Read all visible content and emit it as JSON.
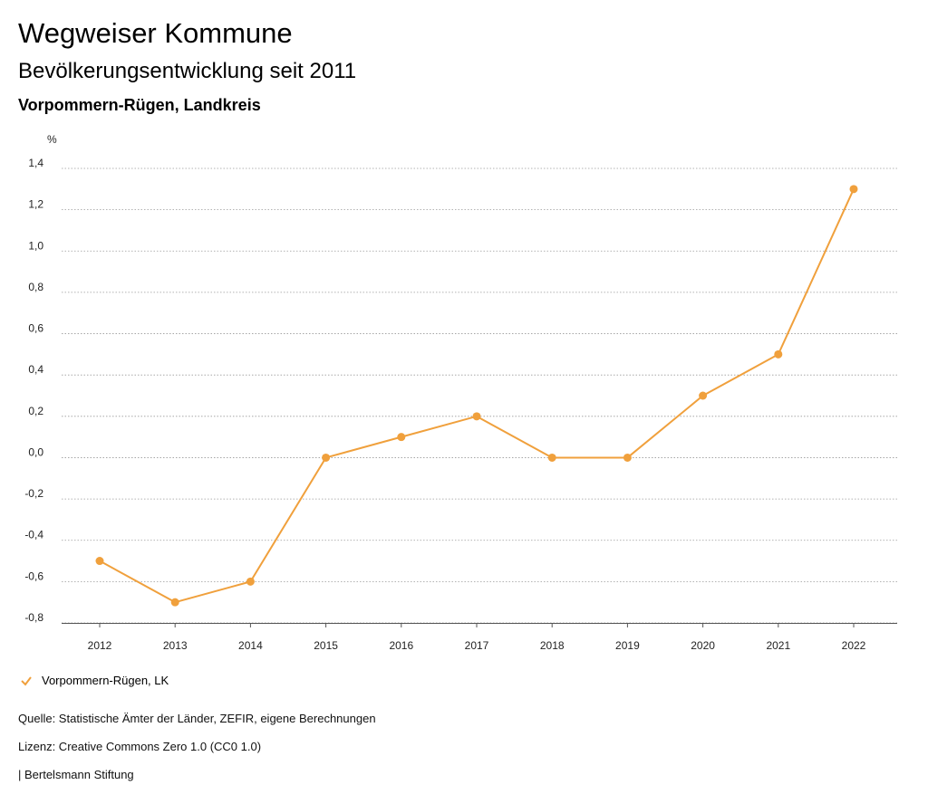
{
  "header": {
    "title": "Wegweiser Kommune",
    "subtitle": "Bevölkerungsentwicklung seit 2011",
    "region": "Vorpommern-Rügen, Landkreis"
  },
  "chart_data": {
    "type": "line",
    "title": "Bevölkerungsentwicklung seit 2011",
    "ylabel": "%",
    "xlabel": "",
    "ylim": [
      -0.8,
      1.4
    ],
    "yticks": [
      "1,4",
      "1,2",
      "1,0",
      "0,8",
      "0,6",
      "0,4",
      "0,2",
      "0,0",
      "-0,2",
      "-0,4",
      "-0,6",
      "-0,8"
    ],
    "ytick_values": [
      1.4,
      1.2,
      1.0,
      0.8,
      0.6,
      0.4,
      0.2,
      0.0,
      -0.2,
      -0.4,
      -0.6,
      -0.8
    ],
    "categories": [
      "2012",
      "2013",
      "2014",
      "2015",
      "2016",
      "2017",
      "2018",
      "2019",
      "2020",
      "2021",
      "2022"
    ],
    "series": [
      {
        "name": "Vorpommern-Rügen, LK",
        "color": "#f0a03c",
        "values": [
          -0.5,
          -0.7,
          -0.6,
          0.0,
          0.1,
          0.2,
          0.0,
          0.0,
          0.3,
          0.5,
          1.3
        ]
      }
    ],
    "grid": true,
    "legend": "bottom-left"
  },
  "legend": {
    "label": "Vorpommern-Rügen, LK",
    "icon": "checkmark-icon"
  },
  "footer": {
    "source": "Quelle: Statistische Ämter der Länder, ZEFIR, eigene Berechnungen",
    "license": "Lizenz: Creative Commons Zero 1.0 (CC0 1.0)",
    "publisher": "| Bertelsmann Stiftung"
  }
}
